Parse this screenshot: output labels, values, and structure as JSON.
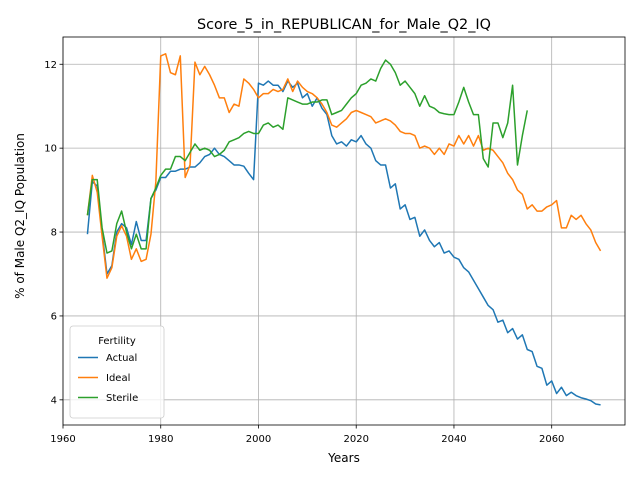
{
  "chart_data": {
    "type": "line",
    "title": "Score_5_in_REPUBLICAN_for_Male_Q2_IQ",
    "xlabel": "Years",
    "ylabel": "% of Male Q2_IQ Population",
    "xlim": [
      1960,
      2075
    ],
    "ylim": [
      3.4,
      12.65
    ],
    "xticks": [
      1960,
      1980,
      2000,
      2020,
      2040,
      2060
    ],
    "yticks": [
      4,
      6,
      8,
      10,
      12
    ],
    "grid": true,
    "legend": {
      "title": "Fertility",
      "placement": "lower-left"
    },
    "series": [
      {
        "name": "Actual",
        "color": "#1f77b4",
        "points": [
          [
            1965,
            7.95
          ],
          [
            1966,
            9.2
          ],
          [
            1967,
            9.1
          ],
          [
            1968,
            8.0
          ],
          [
            1969,
            7.0
          ],
          [
            1970,
            7.2
          ],
          [
            1971,
            8.0
          ],
          [
            1972,
            8.2
          ],
          [
            1973,
            8.1
          ],
          [
            1974,
            7.7
          ],
          [
            1975,
            8.25
          ],
          [
            1976,
            7.8
          ],
          [
            1977,
            7.8
          ],
          [
            1978,
            8.8
          ],
          [
            1979,
            9.0
          ],
          [
            1980,
            9.3
          ],
          [
            1981,
            9.3
          ],
          [
            1982,
            9.45
          ],
          [
            1983,
            9.45
          ],
          [
            1984,
            9.5
          ],
          [
            1985,
            9.5
          ],
          [
            1986,
            9.55
          ],
          [
            1987,
            9.55
          ],
          [
            1988,
            9.65
          ],
          [
            1989,
            9.8
          ],
          [
            1990,
            9.85
          ],
          [
            1991,
            10.0
          ],
          [
            1992,
            9.85
          ],
          [
            1993,
            9.8
          ],
          [
            1994,
            9.7
          ],
          [
            1995,
            9.6
          ],
          [
            1996,
            9.6
          ],
          [
            1997,
            9.57
          ],
          [
            1998,
            9.4
          ],
          [
            1999,
            9.25
          ],
          [
            2000,
            11.55
          ],
          [
            2001,
            11.5
          ],
          [
            2002,
            11.6
          ],
          [
            2003,
            11.5
          ],
          [
            2004,
            11.5
          ],
          [
            2005,
            11.35
          ],
          [
            2006,
            11.6
          ],
          [
            2007,
            11.45
          ],
          [
            2008,
            11.55
          ],
          [
            2009,
            11.2
          ],
          [
            2010,
            11.3
          ],
          [
            2011,
            11.0
          ],
          [
            2012,
            11.2
          ],
          [
            2013,
            10.95
          ],
          [
            2014,
            10.8
          ],
          [
            2015,
            10.3
          ],
          [
            2016,
            10.1
          ],
          [
            2017,
            10.15
          ],
          [
            2018,
            10.05
          ],
          [
            2019,
            10.2
          ],
          [
            2020,
            10.15
          ],
          [
            2021,
            10.3
          ],
          [
            2022,
            10.1
          ],
          [
            2023,
            10.0
          ],
          [
            2024,
            9.7
          ],
          [
            2025,
            9.6
          ],
          [
            2026,
            9.6
          ],
          [
            2027,
            9.05
          ],
          [
            2028,
            9.15
          ],
          [
            2029,
            8.55
          ],
          [
            2030,
            8.65
          ],
          [
            2031,
            8.3
          ],
          [
            2032,
            8.35
          ],
          [
            2033,
            7.9
          ],
          [
            2034,
            8.05
          ],
          [
            2035,
            7.8
          ],
          [
            2036,
            7.65
          ],
          [
            2037,
            7.75
          ],
          [
            2038,
            7.5
          ],
          [
            2039,
            7.55
          ],
          [
            2040,
            7.4
          ],
          [
            2041,
            7.35
          ],
          [
            2042,
            7.15
          ],
          [
            2043,
            7.05
          ],
          [
            2044,
            6.85
          ],
          [
            2045,
            6.65
          ],
          [
            2046,
            6.45
          ],
          [
            2047,
            6.25
          ],
          [
            2048,
            6.15
          ],
          [
            2049,
            5.85
          ],
          [
            2050,
            5.9
          ],
          [
            2051,
            5.6
          ],
          [
            2052,
            5.7
          ],
          [
            2053,
            5.45
          ],
          [
            2054,
            5.55
          ],
          [
            2055,
            5.2
          ],
          [
            2056,
            5.15
          ],
          [
            2057,
            4.8
          ],
          [
            2058,
            4.75
          ],
          [
            2059,
            4.35
          ],
          [
            2060,
            4.45
          ],
          [
            2061,
            4.15
          ],
          [
            2062,
            4.3
          ],
          [
            2063,
            4.1
          ],
          [
            2064,
            4.18
          ],
          [
            2065,
            4.1
          ],
          [
            2066,
            4.05
          ],
          [
            2067,
            4.02
          ],
          [
            2068,
            3.98
          ],
          [
            2069,
            3.9
          ],
          [
            2070,
            3.88
          ]
        ]
      },
      {
        "name": "Ideal",
        "color": "#ff7f0e",
        "points": [
          [
            1965,
            8.4
          ],
          [
            1966,
            9.35
          ],
          [
            1967,
            8.95
          ],
          [
            1968,
            7.9
          ],
          [
            1969,
            6.9
          ],
          [
            1970,
            7.15
          ],
          [
            1971,
            7.9
          ],
          [
            1972,
            8.15
          ],
          [
            1973,
            7.9
          ],
          [
            1974,
            7.35
          ],
          [
            1975,
            7.6
          ],
          [
            1976,
            7.3
          ],
          [
            1977,
            7.35
          ],
          [
            1978,
            7.95
          ],
          [
            1979,
            9.2
          ],
          [
            1980,
            12.2
          ],
          [
            1981,
            12.25
          ],
          [
            1982,
            11.8
          ],
          [
            1983,
            11.75
          ],
          [
            1984,
            12.2
          ],
          [
            1985,
            9.3
          ],
          [
            1986,
            9.6
          ],
          [
            1987,
            12.05
          ],
          [
            1988,
            11.75
          ],
          [
            1989,
            11.95
          ],
          [
            1990,
            11.75
          ],
          [
            1991,
            11.5
          ],
          [
            1992,
            11.2
          ],
          [
            1993,
            11.2
          ],
          [
            1994,
            10.85
          ],
          [
            1995,
            11.05
          ],
          [
            1996,
            11.0
          ],
          [
            1997,
            11.65
          ],
          [
            1998,
            11.55
          ],
          [
            1999,
            11.4
          ],
          [
            2000,
            11.2
          ],
          [
            2001,
            11.3
          ],
          [
            2002,
            11.3
          ],
          [
            2003,
            11.4
          ],
          [
            2004,
            11.35
          ],
          [
            2005,
            11.4
          ],
          [
            2006,
            11.65
          ],
          [
            2007,
            11.35
          ],
          [
            2008,
            11.6
          ],
          [
            2009,
            11.45
          ],
          [
            2010,
            11.35
          ],
          [
            2011,
            11.3
          ],
          [
            2012,
            11.2
          ],
          [
            2013,
            11.05
          ],
          [
            2014,
            10.85
          ],
          [
            2015,
            10.55
          ],
          [
            2016,
            10.5
          ],
          [
            2017,
            10.6
          ],
          [
            2018,
            10.7
          ],
          [
            2019,
            10.85
          ],
          [
            2020,
            10.9
          ],
          [
            2021,
            10.85
          ],
          [
            2022,
            10.8
          ],
          [
            2023,
            10.75
          ],
          [
            2024,
            10.6
          ],
          [
            2025,
            10.65
          ],
          [
            2026,
            10.7
          ],
          [
            2027,
            10.65
          ],
          [
            2028,
            10.55
          ],
          [
            2029,
            10.4
          ],
          [
            2030,
            10.35
          ],
          [
            2031,
            10.35
          ],
          [
            2032,
            10.3
          ],
          [
            2033,
            10.0
          ],
          [
            2034,
            10.05
          ],
          [
            2035,
            10.0
          ],
          [
            2036,
            9.85
          ],
          [
            2037,
            10.0
          ],
          [
            2038,
            9.85
          ],
          [
            2039,
            10.1
          ],
          [
            2040,
            10.05
          ],
          [
            2041,
            10.3
          ],
          [
            2042,
            10.1
          ],
          [
            2043,
            10.3
          ],
          [
            2044,
            10.05
          ],
          [
            2045,
            10.3
          ],
          [
            2046,
            9.95
          ],
          [
            2047,
            10.0
          ],
          [
            2048,
            9.95
          ],
          [
            2049,
            9.8
          ],
          [
            2050,
            9.65
          ],
          [
            2051,
            9.4
          ],
          [
            2052,
            9.25
          ],
          [
            2053,
            9.0
          ],
          [
            2054,
            8.9
          ],
          [
            2055,
            8.55
          ],
          [
            2056,
            8.65
          ],
          [
            2057,
            8.5
          ],
          [
            2058,
            8.5
          ],
          [
            2059,
            8.6
          ],
          [
            2060,
            8.65
          ],
          [
            2061,
            8.75
          ],
          [
            2062,
            8.1
          ],
          [
            2063,
            8.1
          ],
          [
            2064,
            8.4
          ],
          [
            2065,
            8.3
          ],
          [
            2066,
            8.4
          ],
          [
            2067,
            8.2
          ],
          [
            2068,
            8.05
          ],
          [
            2069,
            7.75
          ],
          [
            2070,
            7.55
          ]
        ]
      },
      {
        "name": "Sterile",
        "color": "#2ca02c",
        "points": [
          [
            1965,
            8.4
          ],
          [
            1966,
            9.25
          ],
          [
            1967,
            9.25
          ],
          [
            1968,
            8.1
          ],
          [
            1969,
            7.5
          ],
          [
            1970,
            7.55
          ],
          [
            1971,
            8.2
          ],
          [
            1972,
            8.5
          ],
          [
            1973,
            8.0
          ],
          [
            1974,
            7.6
          ],
          [
            1975,
            7.95
          ],
          [
            1976,
            7.6
          ],
          [
            1977,
            7.6
          ],
          [
            1978,
            8.8
          ],
          [
            1979,
            9.05
          ],
          [
            1980,
            9.35
          ],
          [
            1981,
            9.5
          ],
          [
            1982,
            9.5
          ],
          [
            1983,
            9.8
          ],
          [
            1984,
            9.8
          ],
          [
            1985,
            9.7
          ],
          [
            1986,
            9.9
          ],
          [
            1987,
            10.1
          ],
          [
            1988,
            9.95
          ],
          [
            1989,
            10.0
          ],
          [
            1990,
            9.95
          ],
          [
            1991,
            9.8
          ],
          [
            1992,
            9.85
          ],
          [
            1993,
            9.95
          ],
          [
            1994,
            10.15
          ],
          [
            1995,
            10.2
          ],
          [
            1996,
            10.25
          ],
          [
            1997,
            10.35
          ],
          [
            1998,
            10.4
          ],
          [
            1999,
            10.35
          ],
          [
            2000,
            10.35
          ],
          [
            2001,
            10.55
          ],
          [
            2002,
            10.6
          ],
          [
            2003,
            10.5
          ],
          [
            2004,
            10.55
          ],
          [
            2005,
            10.45
          ],
          [
            2006,
            11.2
          ],
          [
            2007,
            11.15
          ],
          [
            2008,
            11.1
          ],
          [
            2009,
            11.05
          ],
          [
            2010,
            11.05
          ],
          [
            2011,
            11.1
          ],
          [
            2012,
            11.1
          ],
          [
            2013,
            11.15
          ],
          [
            2014,
            11.15
          ],
          [
            2015,
            10.8
          ],
          [
            2016,
            10.85
          ],
          [
            2017,
            10.9
          ],
          [
            2018,
            11.05
          ],
          [
            2019,
            11.2
          ],
          [
            2020,
            11.3
          ],
          [
            2021,
            11.5
          ],
          [
            2022,
            11.55
          ],
          [
            2023,
            11.65
          ],
          [
            2024,
            11.6
          ],
          [
            2025,
            11.9
          ],
          [
            2026,
            12.1
          ],
          [
            2027,
            12.0
          ],
          [
            2028,
            11.8
          ],
          [
            2029,
            11.5
          ],
          [
            2030,
            11.6
          ],
          [
            2031,
            11.45
          ],
          [
            2032,
            11.3
          ],
          [
            2033,
            11.0
          ],
          [
            2034,
            11.25
          ],
          [
            2035,
            11.0
          ],
          [
            2036,
            10.95
          ],
          [
            2037,
            10.85
          ],
          [
            2038,
            10.82
          ],
          [
            2039,
            10.8
          ],
          [
            2040,
            10.8
          ],
          [
            2041,
            11.1
          ],
          [
            2042,
            11.45
          ],
          [
            2043,
            11.1
          ],
          [
            2044,
            10.8
          ],
          [
            2045,
            10.8
          ],
          [
            2046,
            9.75
          ],
          [
            2047,
            9.55
          ],
          [
            2048,
            10.6
          ],
          [
            2049,
            10.6
          ],
          [
            2050,
            10.25
          ],
          [
            2051,
            10.6
          ],
          [
            2052,
            11.5
          ],
          [
            2053,
            9.6
          ],
          [
            2054,
            10.3
          ],
          [
            2055,
            10.9
          ]
        ]
      }
    ]
  }
}
